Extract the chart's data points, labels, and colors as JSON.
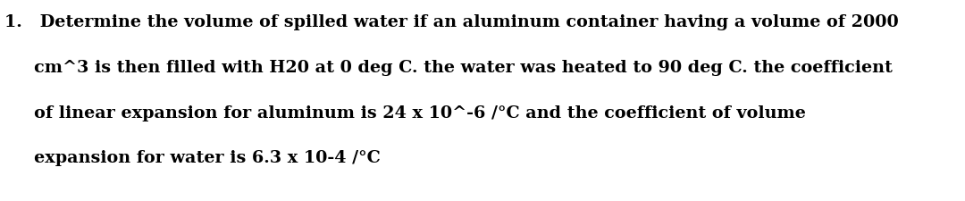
{
  "line1": "1.   Determine the volume of spilled water if an aluminum container having a volume of 2000",
  "line2": "     cm^3 is then filled with H20 at 0 deg C. the water was heated to 90 deg C. the coefficient",
  "line3": "     of linear expansion for aluminum is 24 x 10^-6 /°C and the coefficient of volume",
  "line4": "     expansion for water is 6.3 x 10-4 /°C",
  "background_color": "#ffffff",
  "text_color": "#000000",
  "font_size": 13.8,
  "fig_width": 10.8,
  "fig_height": 2.26,
  "dpi": 100
}
